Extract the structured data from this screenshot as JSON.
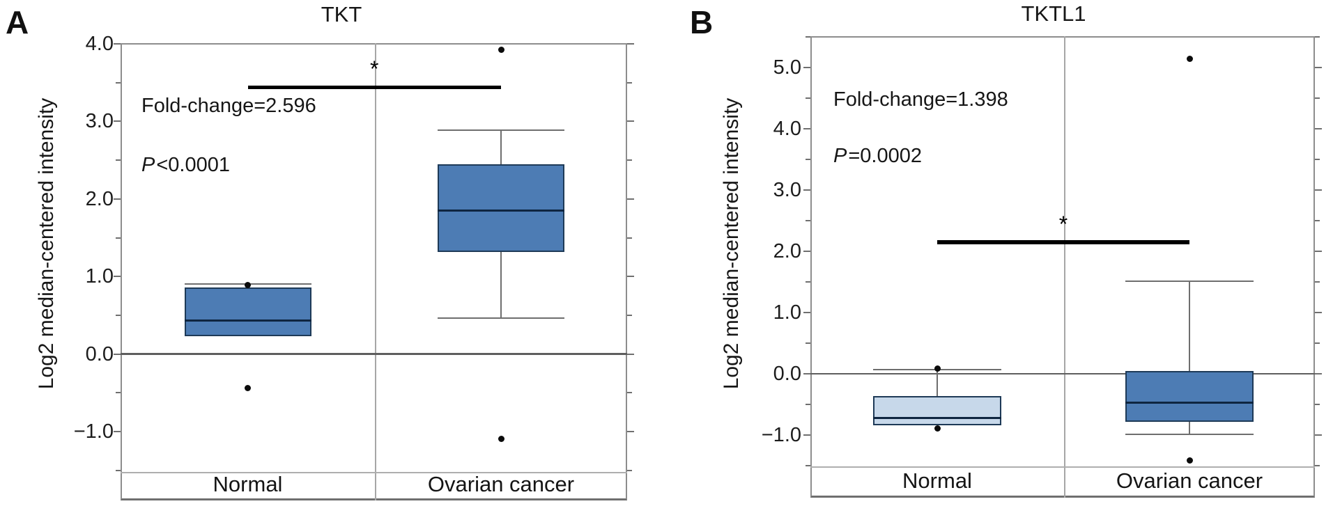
{
  "figure": {
    "panels": [
      {
        "letter": "A",
        "title": "TKT",
        "y_axis_label": "Log2 median-centered intensity",
        "fold_change_label": "Fold-change=2.596",
        "p_italic": "P",
        "p_rest": "<0.0001",
        "significance_marker": "*"
      },
      {
        "letter": "B",
        "title": "TKTL1",
        "y_axis_label": "Log2 median-centered intensity",
        "fold_change_label": "Fold-change=1.398",
        "p_italic": "P",
        "p_rest": "=0.0002",
        "significance_marker": "*"
      }
    ]
  },
  "colors": {
    "box_blue": "#4d7cb4",
    "box_light_blue": "#c7d8ea",
    "box_border": "#1e3a57",
    "median_line": "#0e2540",
    "whisker_gray": "#6e6e6e",
    "frame_gray": "#8d8d8d",
    "significance_black": "#000000"
  },
  "chart_data": [
    {
      "type": "boxplot",
      "title": "TKT",
      "xlabel": "",
      "ylabel": "Log2 median-centered intensity",
      "categories": [
        "Normal",
        "Ovarian cancer"
      ],
      "yticks": [
        4.0,
        3.0,
        2.0,
        1.0,
        0.0,
        -1.0
      ],
      "minor_tick_step": 0.5,
      "ylim": [
        -1.52,
        4.0
      ],
      "grid": false,
      "zero_line": true,
      "annotations": {
        "fold_change": 2.596,
        "p_value": "P<0.0001",
        "significance": "*",
        "sig_bar_y": 3.44
      },
      "series": [
        {
          "name": "Normal",
          "q1": 0.23,
          "median": 0.43,
          "q3": 0.86,
          "whisker_low": 0.23,
          "whisker_high": 0.9,
          "outliers": [
            0.89,
            -0.44
          ],
          "box_color": "#4d7cb4"
        },
        {
          "name": "Ovarian cancer",
          "q1": 1.32,
          "median": 1.85,
          "q3": 2.45,
          "whisker_low": 0.46,
          "whisker_high": 2.89,
          "outliers": [
            3.92,
            -1.09
          ],
          "box_color": "#4d7cb4"
        }
      ]
    },
    {
      "type": "boxplot",
      "title": "TKTL1",
      "xlabel": "",
      "ylabel": "Log2 median-centered intensity",
      "categories": [
        "Normal",
        "Ovarian cancer"
      ],
      "yticks": [
        5.0,
        4.0,
        3.0,
        2.0,
        1.0,
        0.0,
        -1.0
      ],
      "minor_tick_step": 0.5,
      "ylim": [
        -1.53,
        5.51
      ],
      "grid": false,
      "zero_line": true,
      "annotations": {
        "fold_change": 1.398,
        "p_value": "P=0.0002",
        "significance": "*",
        "sig_bar_y": 2.15
      },
      "series": [
        {
          "name": "Normal",
          "q1": -0.84,
          "median": -0.72,
          "q3": -0.36,
          "whisker_low": -0.84,
          "whisker_high": 0.07,
          "outliers": [
            0.08,
            -0.89
          ],
          "box_color": "#c7d8ea"
        },
        {
          "name": "Ovarian cancer",
          "q1": -0.78,
          "median": -0.47,
          "q3": 0.04,
          "whisker_low": -0.99,
          "whisker_high": 1.51,
          "outliers": [
            5.14,
            -1.42
          ],
          "box_color": "#4d7cb4"
        }
      ]
    }
  ]
}
